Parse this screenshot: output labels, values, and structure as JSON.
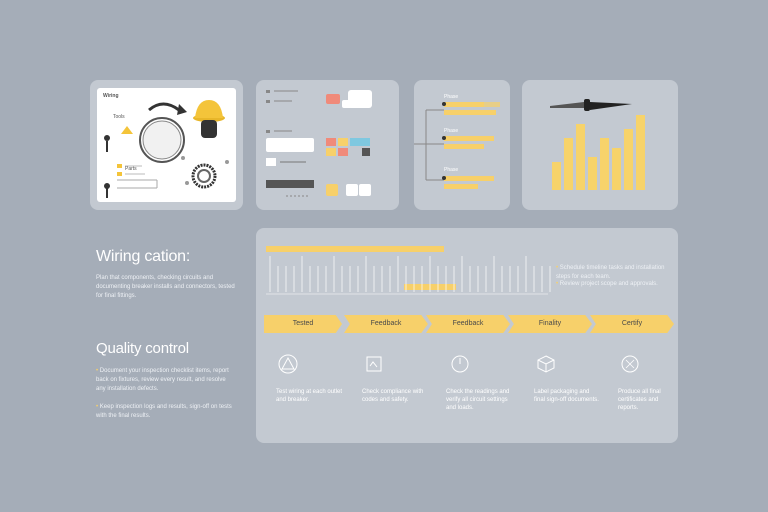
{
  "panels": {
    "panel1": {
      "title": "Wiring",
      "label_a": "Tools",
      "label_b": "Parts"
    },
    "panel2": {
      "rows": [
        "Item",
        "Item",
        "Item"
      ]
    },
    "panel3": {
      "rows": [
        "Phase",
        "Phase",
        "Phase"
      ]
    },
    "panel4": {
      "chart_values": [
        30,
        55,
        70,
        35,
        55,
        45,
        65,
        80
      ]
    }
  },
  "sections": {
    "wiring": {
      "title": "Wiring cation:",
      "body": "Plan that components, checking circuits and documenting breaker installs and connectors, tested for final fittings."
    },
    "quality": {
      "title": "Quality control",
      "bullets": [
        "Document your inspection checklist items, report back on fixtures, review every result, and resolve any installation defects.",
        "Keep inspection logs and results, sign-off on tests with the final results."
      ]
    }
  },
  "timeline": {
    "legend": [
      "Schedule timeline tasks and installation steps for each team.",
      "Review project scope and approvals."
    ]
  },
  "steps": [
    {
      "label": "Tested",
      "icon": "warning-icon",
      "text": "Test wiring at each outlet and breaker."
    },
    {
      "label": "Feedback",
      "icon": "checklist-icon",
      "text": "Check compliance with codes and safety."
    },
    {
      "label": "Feedback",
      "icon": "gauge-icon",
      "text": "Check the readings and verify all circuit settings and loads."
    },
    {
      "label": "Finality",
      "icon": "box-icon",
      "text": "Label packaging and final sign-off documents."
    },
    {
      "label": "Certify",
      "icon": "certificate-icon",
      "text": "Produce all final certificates and reports."
    }
  ],
  "colors": {
    "accent": "#f7d06a",
    "panel": "#c3c9d1",
    "background": "#a5adb8"
  }
}
